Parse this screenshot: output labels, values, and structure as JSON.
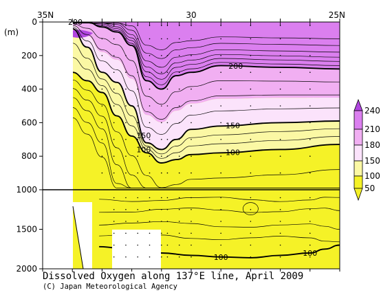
{
  "chart_data": {
    "type": "heatmap",
    "title": "Dissolved Oxygen along 137°E line, April 2009",
    "credit": "(C) Japan Meteorological Agency",
    "ylabel": "(m)",
    "x_ticks": [
      {
        "lat": 35,
        "label": "35N"
      },
      {
        "lat": 30,
        "label": "30"
      },
      {
        "lat": 25,
        "label": "25N"
      }
    ],
    "station_lats": [
      33.0,
      32.6,
      32.2,
      31.8,
      31.4,
      31.0,
      30.8,
      30.4,
      30.0,
      29.0,
      28.0,
      27.0,
      26.0
    ],
    "xlim": [
      35,
      25
    ],
    "y_upper": {
      "ticks": [
        0,
        200,
        400,
        600,
        800,
        1000
      ],
      "range": [
        0,
        1000
      ]
    },
    "y_lower": {
      "ticks": [
        1000,
        1500,
        2000
      ],
      "range": [
        1000,
        2000
      ]
    },
    "colorbar": {
      "levels": [
        50,
        100,
        150,
        180,
        210,
        240
      ],
      "labels": [
        "240",
        "210",
        "180",
        "150",
        "100",
        "50"
      ],
      "colors": [
        "#f5f227",
        "#fbf8a4",
        "#fbe3fb",
        "#f1aff2",
        "#db7fef",
        "#b146e0"
      ]
    },
    "contours": [
      {
        "level": 200,
        "depth": [
          0,
          0,
          30,
          60,
          140,
          350,
          400,
          320,
          300,
          260,
          270,
          280
        ],
        "labels": [
          {
            "lat": 33.9,
            "text": "200"
          },
          {
            "lat": 28.5,
            "text": "200"
          }
        ]
      },
      {
        "level": 150,
        "depth": [
          40,
          150,
          300,
          360,
          500,
          720,
          760,
          700,
          640,
          620,
          600,
          590
        ],
        "labels": [
          {
            "lat": 31.6,
            "text": "150"
          },
          {
            "lat": 28.6,
            "text": "150"
          }
        ]
      },
      {
        "level": 100,
        "depth": [
          300,
          350,
          420,
          560,
          680,
          780,
          840,
          820,
          790,
          780,
          760,
          730
        ],
        "labels": [
          {
            "lat": 31.6,
            "text": "100"
          },
          {
            "lat": 28.6,
            "text": "100"
          }
        ]
      },
      {
        "level": 100,
        "depth": [
          1720,
          1760,
          1800,
          1830,
          1850,
          1860,
          1830,
          1800,
          1750,
          1700
        ],
        "lat_start": 33.1,
        "labels": [
          {
            "lat": 29.0,
            "text": "100"
          },
          {
            "lat": 26.0,
            "text": "100"
          }
        ]
      }
    ],
    "surface_max_label": "200"
  }
}
